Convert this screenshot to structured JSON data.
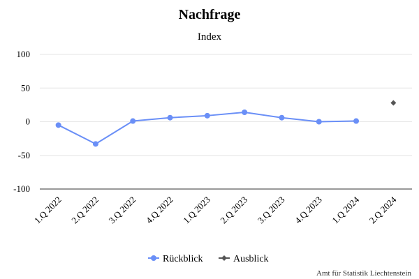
{
  "chart_data": {
    "type": "line",
    "title": "Nachfrage",
    "subtitle": "Index",
    "categories": [
      "1.Q 2022",
      "2.Q 2022",
      "3.Q 2022",
      "4.Q 2022",
      "1.Q 2023",
      "2.Q 2023",
      "3.Q 2023",
      "4.Q 2023",
      "1.Q 2024",
      "2.Q 2024"
    ],
    "ylim": [
      -100,
      100
    ],
    "yticks": [
      "100",
      "50",
      "0",
      "-50",
      "-100"
    ],
    "grid": true,
    "legend_position": "bottom-center",
    "series": [
      {
        "name": "Rückblick",
        "color": "#6a8ff7",
        "marker": "circle",
        "values": [
          -5,
          -33,
          1,
          6,
          9,
          14,
          6,
          0,
          1,
          null
        ]
      },
      {
        "name": "Ausblick",
        "color": "#555555",
        "marker": "diamond",
        "values": [
          null,
          null,
          null,
          null,
          null,
          null,
          null,
          null,
          null,
          28
        ]
      }
    ],
    "credit": "Amt für Statistik Liechtenstein"
  }
}
